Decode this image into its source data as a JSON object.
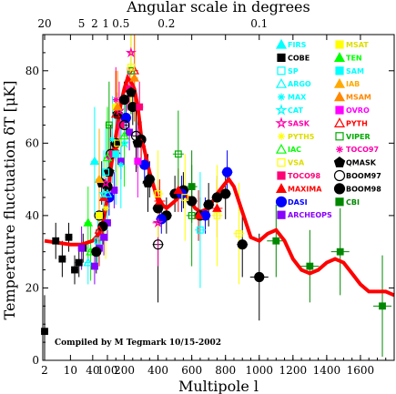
{
  "chart_data": {
    "type": "scatter",
    "title": "",
    "top_axis_label": "Angular scale in degrees",
    "top_ticks": [
      "20",
      "5",
      "2",
      "1",
      "0.5",
      "0.2",
      "0.1"
    ],
    "top_tick_ell": [
      2,
      20,
      45,
      90,
      180,
      450,
      1000
    ],
    "xlabel": "Multipole l",
    "ylabel": "Temperature fluctuation δT [μK]",
    "xlim": [
      0,
      1800
    ],
    "ylim": [
      0,
      90
    ],
    "x_ticks": [
      "2",
      "10",
      "40",
      "100",
      "200",
      "400",
      "600",
      "800",
      "1000",
      "1200",
      "1400",
      "1600"
    ],
    "x_tick_values": [
      2,
      10,
      40,
      100,
      200,
      400,
      600,
      800,
      1000,
      1200,
      1400,
      1600
    ],
    "y_ticks": [
      "0",
      "20",
      "40",
      "60",
      "80"
    ],
    "y_tick_values": [
      0,
      20,
      40,
      60,
      80
    ],
    "credit": "Compiled by M Tegmark 10/15-2002",
    "legend": [
      {
        "name": "FIRS",
        "color": "#00ffff",
        "shape": "triangle",
        "fill": true
      },
      {
        "name": "COBE",
        "color": "#000000",
        "shape": "square",
        "fill": true
      },
      {
        "name": "SP",
        "color": "#00ffff",
        "shape": "square",
        "fill": false
      },
      {
        "name": "ARGO",
        "color": "#00ffff",
        "shape": "triangle",
        "fill": false
      },
      {
        "name": "MAX",
        "color": "#00ffff",
        "shape": "star",
        "fill": false
      },
      {
        "name": "CAT",
        "color": "#00ffff",
        "shape": "star5",
        "fill": false
      },
      {
        "name": "SASK",
        "color": "#ff00aa",
        "shape": "star5",
        "fill": false
      },
      {
        "name": "PYTH5",
        "color": "#ffff00",
        "shape": "star",
        "fill": false
      },
      {
        "name": "IAC",
        "color": "#00ff00",
        "shape": "triangle",
        "fill": false
      },
      {
        "name": "VSA",
        "color": "#ffff00",
        "shape": "square",
        "fill": false
      },
      {
        "name": "TOCO98",
        "color": "#ff0077",
        "shape": "square",
        "fill": true
      },
      {
        "name": "MAXIMA",
        "color": "#ff0000",
        "shape": "triangle",
        "fill": true
      },
      {
        "name": "DASI",
        "color": "#0000ff",
        "shape": "circle",
        "fill": true
      },
      {
        "name": "ARCHEOPS",
        "color": "#8800ff",
        "shape": "square",
        "fill": true
      },
      {
        "name": "MSAT",
        "color": "#ffff00",
        "shape": "square",
        "fill": true
      },
      {
        "name": "TEN",
        "color": "#00ff00",
        "shape": "triangle",
        "fill": true
      },
      {
        "name": "SAM",
        "color": "#00ffff",
        "shape": "square",
        "fill": true
      },
      {
        "name": "IAB",
        "color": "#ffaa00",
        "shape": "triangle",
        "fill": true
      },
      {
        "name": "MSAM",
        "color": "#ff8800",
        "shape": "triangle",
        "fill": true
      },
      {
        "name": "OVRO",
        "color": "#ff00ff",
        "shape": "square",
        "fill": true
      },
      {
        "name": "PYTH",
        "color": "#ff0000",
        "shape": "triangle",
        "fill": false
      },
      {
        "name": "VIPER",
        "color": "#00aa00",
        "shape": "square",
        "fill": false
      },
      {
        "name": "TOCO97",
        "color": "#ff00aa",
        "shape": "star",
        "fill": false
      },
      {
        "name": "QMASK",
        "color": "#000000",
        "shape": "pentagon",
        "fill": true
      },
      {
        "name": "BOOM97",
        "color": "#000000",
        "shape": "circle",
        "fill": false
      },
      {
        "name": "BOOM98",
        "color": "#000000",
        "shape": "circle",
        "fill": true
      },
      {
        "name": "CBI",
        "color": "#008800",
        "shape": "square",
        "fill": true
      }
    ],
    "model_curve": {
      "color": "#ff0000",
      "l": [
        2,
        10,
        20,
        40,
        60,
        80,
        100,
        120,
        150,
        180,
        200,
        220,
        240,
        260,
        280,
        300,
        350,
        400,
        450,
        500,
        540,
        580,
        620,
        650,
        700,
        750,
        800,
        820,
        850,
        900,
        950,
        1000,
        1050,
        1100,
        1150,
        1200,
        1250,
        1300,
        1350,
        1400,
        1450,
        1500,
        1550,
        1600,
        1650,
        1700,
        1750,
        1800
      ],
      "dT": [
        33,
        32,
        32,
        33,
        35,
        39,
        45,
        53,
        62,
        71,
        75,
        78,
        77,
        75,
        70,
        62,
        52,
        44,
        42,
        44,
        46,
        45,
        42,
        41,
        42,
        46,
        49,
        50,
        48,
        41,
        34,
        33,
        35,
        36,
        33,
        28,
        25,
        24,
        25,
        27,
        28,
        27,
        24,
        21,
        19,
        19,
        19,
        18
      ]
    },
    "points": [
      {
        "s": "COBE",
        "l": 2,
        "y": 8,
        "e": 10
      },
      {
        "s": "COBE",
        "l": 4,
        "y": 33,
        "e": 5
      },
      {
        "s": "COBE",
        "l": 6,
        "y": 28,
        "e": 5
      },
      {
        "s": "COBE",
        "l": 9,
        "y": 34,
        "e": 4
      },
      {
        "s": "COBE",
        "l": 13,
        "y": 25,
        "e": 4
      },
      {
        "s": "COBE",
        "l": 17,
        "y": 27,
        "e": 4
      },
      {
        "s": "COBE",
        "l": 22,
        "y": 31,
        "e": 4
      },
      {
        "s": "ARGO",
        "l": 30,
        "y": 27,
        "e": 6
      },
      {
        "s": "IAC",
        "l": 35,
        "y": 30,
        "e": 8
      },
      {
        "s": "SP",
        "l": 55,
        "y": 33,
        "e": 8
      },
      {
        "s": "ARCHEOPS",
        "l": 20,
        "y": 31,
        "e": 6
      },
      {
        "s": "ARCHEOPS",
        "l": 45,
        "y": 26,
        "e": 5
      },
      {
        "s": "ARCHEOPS",
        "l": 60,
        "y": 31,
        "e": 5
      },
      {
        "s": "ARCHEOPS",
        "l": 80,
        "y": 34,
        "e": 5
      },
      {
        "s": "ARCHEOPS",
        "l": 100,
        "y": 38,
        "e": 5
      },
      {
        "s": "ARCHEOPS",
        "l": 140,
        "y": 47,
        "e": 5
      },
      {
        "s": "ARCHEOPS",
        "l": 180,
        "y": 55,
        "e": 5
      },
      {
        "s": "ARCHEOPS",
        "l": 230,
        "y": 63,
        "e": 5
      },
      {
        "s": "ARCHEOPS",
        "l": 300,
        "y": 60,
        "e": 6
      },
      {
        "s": "BOOM98",
        "l": 50,
        "y": 30,
        "e": 6
      },
      {
        "s": "BOOM98",
        "l": 75,
        "y": 37,
        "e": 5
      },
      {
        "s": "BOOM98",
        "l": 100,
        "y": 48,
        "e": 5
      },
      {
        "s": "BOOM98",
        "l": 150,
        "y": 60,
        "e": 5
      },
      {
        "s": "BOOM98",
        "l": 200,
        "y": 72,
        "e": 5
      },
      {
        "s": "BOOM98",
        "l": 250,
        "y": 70,
        "e": 5
      },
      {
        "s": "BOOM98",
        "l": 300,
        "y": 61,
        "e": 5
      },
      {
        "s": "BOOM98",
        "l": 350,
        "y": 50,
        "e": 5
      },
      {
        "s": "BOOM98",
        "l": 400,
        "y": 42,
        "e": 5
      },
      {
        "s": "BOOM98",
        "l": 450,
        "y": 40,
        "e": 5
      },
      {
        "s": "BOOM98",
        "l": 500,
        "y": 46,
        "e": 5
      },
      {
        "s": "BOOM98",
        "l": 550,
        "y": 47,
        "e": 5
      },
      {
        "s": "BOOM98",
        "l": 600,
        "y": 44,
        "e": 5
      },
      {
        "s": "BOOM98",
        "l": 650,
        "y": 40,
        "e": 5
      },
      {
        "s": "BOOM98",
        "l": 700,
        "y": 43,
        "e": 6
      },
      {
        "s": "BOOM98",
        "l": 750,
        "y": 45,
        "e": 6
      },
      {
        "s": "BOOM98",
        "l": 800,
        "y": 46,
        "e": 7
      },
      {
        "s": "BOOM98",
        "l": 900,
        "y": 32,
        "e": 9
      },
      {
        "s": "BOOM98",
        "l": 1000,
        "y": 23,
        "e": 12
      },
      {
        "s": "DASI",
        "l": 110,
        "y": 45,
        "e": 5
      },
      {
        "s": "DASI",
        "l": 210,
        "y": 67,
        "e": 5
      },
      {
        "s": "DASI",
        "l": 320,
        "y": 54,
        "e": 5
      },
      {
        "s": "DASI",
        "l": 420,
        "y": 39,
        "e": 4
      },
      {
        "s": "DASI",
        "l": 540,
        "y": 46,
        "e": 5
      },
      {
        "s": "DASI",
        "l": 680,
        "y": 40,
        "e": 5
      },
      {
        "s": "DASI",
        "l": 810,
        "y": 52,
        "e": 6
      },
      {
        "s": "MAXIMA",
        "l": 80,
        "y": 45,
        "e": 6
      },
      {
        "s": "MAXIMA",
        "l": 150,
        "y": 58,
        "e": 6
      },
      {
        "s": "MAXIMA",
        "l": 220,
        "y": 75,
        "e": 6
      },
      {
        "s": "MAXIMA",
        "l": 300,
        "y": 60,
        "e": 6
      },
      {
        "s": "MAXIMA",
        "l": 410,
        "y": 44,
        "e": 6
      },
      {
        "s": "MAXIMA",
        "l": 520,
        "y": 47,
        "e": 6
      },
      {
        "s": "MAXIMA",
        "l": 640,
        "y": 40,
        "e": 7
      },
      {
        "s": "MAXIMA",
        "l": 750,
        "y": 42,
        "e": 8
      },
      {
        "s": "TOCO98",
        "l": 130,
        "y": 57,
        "e": 6
      },
      {
        "s": "TOCO98",
        "l": 180,
        "y": 65,
        "e": 6
      },
      {
        "s": "TOCO98",
        "l": 230,
        "y": 75,
        "e": 6
      },
      {
        "s": "TOCO98",
        "l": 290,
        "y": 70,
        "e": 7
      },
      {
        "s": "QMASK",
        "l": 70,
        "y": 49,
        "e": 6
      },
      {
        "s": "QMASK",
        "l": 110,
        "y": 52,
        "e": 6
      },
      {
        "s": "QMASK",
        "l": 160,
        "y": 68,
        "e": 6
      },
      {
        "s": "QMASK",
        "l": 240,
        "y": 74,
        "e": 6
      },
      {
        "s": "QMASK",
        "l": 280,
        "y": 60,
        "e": 7
      },
      {
        "s": "QMASK",
        "l": 340,
        "y": 49,
        "e": 8
      },
      {
        "s": "BOOM97",
        "l": 60,
        "y": 40,
        "e": 8
      },
      {
        "s": "BOOM97",
        "l": 120,
        "y": 57,
        "e": 8
      },
      {
        "s": "BOOM97",
        "l": 200,
        "y": 65,
        "e": 8
      },
      {
        "s": "BOOM97",
        "l": 270,
        "y": 62,
        "e": 10
      },
      {
        "s": "BOOM97",
        "l": 400,
        "y": 32,
        "e": 16
      },
      {
        "s": "SASK",
        "l": 90,
        "y": 49,
        "e": 8
      },
      {
        "s": "SASK",
        "l": 170,
        "y": 69,
        "e": 8
      },
      {
        "s": "SASK",
        "l": 240,
        "y": 85,
        "e": 10
      },
      {
        "s": "SASK",
        "l": 400,
        "y": 38,
        "e": 12
      },
      {
        "s": "TOCO97",
        "l": 60,
        "y": 40,
        "e": 9
      },
      {
        "s": "TOCO97",
        "l": 110,
        "y": 56,
        "e": 9
      },
      {
        "s": "TOCO97",
        "l": 150,
        "y": 72,
        "e": 9
      },
      {
        "s": "MSAT",
        "l": 60,
        "y": 40,
        "e": 10
      },
      {
        "s": "MSAT",
        "l": 150,
        "y": 70,
        "e": 10
      },
      {
        "s": "PYTH",
        "l": 60,
        "y": 36,
        "e": 10
      },
      {
        "s": "PYTH",
        "l": 150,
        "y": 68,
        "e": 12
      },
      {
        "s": "PYTH",
        "l": 260,
        "y": 80,
        "e": 14
      },
      {
        "s": "CAT",
        "l": 80,
        "y": 46,
        "e": 12
      },
      {
        "s": "CAT",
        "l": 200,
        "y": 60,
        "e": 12
      },
      {
        "s": "SP",
        "l": 90,
        "y": 52,
        "e": 12
      },
      {
        "s": "MAX",
        "l": 130,
        "y": 61,
        "e": 12
      },
      {
        "s": "MAX",
        "l": 180,
        "y": 54,
        "e": 12
      },
      {
        "s": "FIRS",
        "l": 45,
        "y": 55,
        "e": 15
      },
      {
        "s": "TEN",
        "l": 30,
        "y": 38,
        "e": 10
      },
      {
        "s": "IAB",
        "l": 60,
        "y": 50,
        "e": 14
      },
      {
        "s": "MSAM",
        "l": 160,
        "y": 70,
        "e": 10
      },
      {
        "s": "MSAM",
        "l": 260,
        "y": 78,
        "e": 12
      },
      {
        "s": "OVRO",
        "l": 280,
        "y": 55,
        "e": 10
      },
      {
        "s": "VIPER",
        "l": 110,
        "y": 65,
        "e": 12
      },
      {
        "s": "VIPER",
        "l": 240,
        "y": 80,
        "e": 12
      },
      {
        "s": "VIPER",
        "l": 520,
        "y": 57,
        "e": 12
      },
      {
        "s": "VIPER",
        "l": 600,
        "y": 40,
        "e": 14
      },
      {
        "s": "VSA",
        "l": 160,
        "y": 60,
        "e": 12
      },
      {
        "s": "VSA",
        "l": 240,
        "y": 81,
        "e": 12
      },
      {
        "s": "VSA",
        "l": 400,
        "y": 46,
        "e": 12
      },
      {
        "s": "VSA",
        "l": 560,
        "y": 45,
        "e": 12
      },
      {
        "s": "VSA",
        "l": 750,
        "y": 40,
        "e": 14
      },
      {
        "s": "VSA",
        "l": 880,
        "y": 35,
        "e": 14
      },
      {
        "s": "IAC",
        "l": 100,
        "y": 56,
        "e": 14
      },
      {
        "s": "IAC",
        "l": 200,
        "y": 62,
        "e": 14
      },
      {
        "s": "SP",
        "l": 650,
        "y": 36,
        "e": 16
      },
      {
        "s": "SAM",
        "l": 150,
        "y": 57,
        "e": 14
      },
      {
        "s": "ARGO",
        "l": 100,
        "y": 46,
        "e": 10
      },
      {
        "s": "PYTH5",
        "l": 90,
        "y": 42,
        "e": 14
      },
      {
        "s": "CBI",
        "l": 600,
        "y": 48,
        "e": 10
      },
      {
        "s": "CBI",
        "l": 1100,
        "y": 33,
        "e": 10
      },
      {
        "s": "CBI",
        "l": 1300,
        "y": 26,
        "e": 10
      },
      {
        "s": "CBI",
        "l": 1480,
        "y": 30,
        "e": 12
      },
      {
        "s": "CBI",
        "l": 1730,
        "y": 15,
        "e": 14
      }
    ]
  }
}
